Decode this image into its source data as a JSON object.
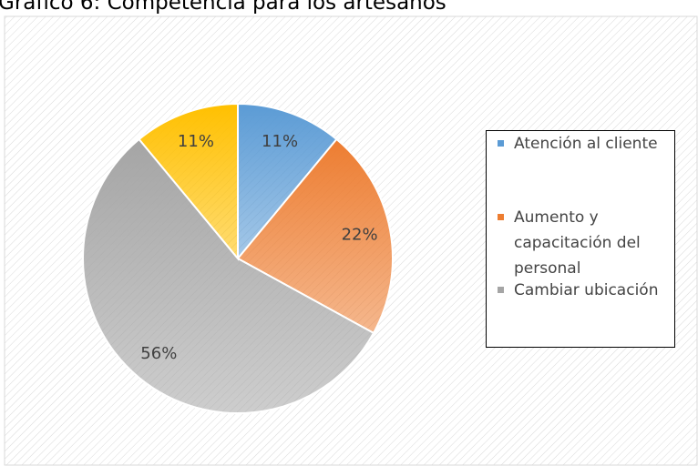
{
  "chart_data": {
    "type": "pie",
    "title": "Gráfico 6: Competencia para los artesanos",
    "categories": [
      "Atención al cliente",
      "Aumento y capacitación del personal",
      "Cambiar ubicación",
      null
    ],
    "values": [
      11,
      22,
      56,
      11
    ],
    "value_labels": [
      "11%",
      "22%",
      "56%",
      "11%"
    ],
    "colors": [
      "#5b9bd5",
      "#ed7d31",
      "#a5a5a5",
      "#ffc000"
    ],
    "legend": "right"
  }
}
